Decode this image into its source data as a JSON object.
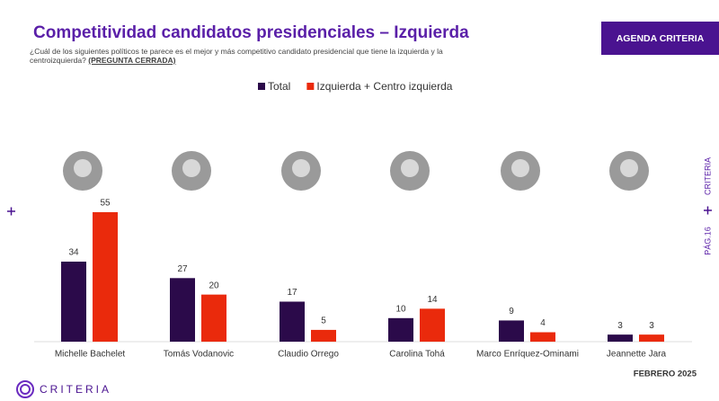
{
  "chart_data": {
    "type": "bar",
    "title": "Competitividad candidatos presidenciales – Izquierda",
    "subtitle": "¿Cuál de los siguientes políticos te parece es el mejor y más competitivo candidato presidencial que tiene la izquierda y la centroizquierda?",
    "note": "(PREGUNTA CERRADA)",
    "categories": [
      "Michelle Bachelet",
      "Tomás Vodanovic",
      "Claudio Orrego",
      "Carolina Tohá",
      "Marco Enríquez-Ominami",
      "Jeannette Jara"
    ],
    "series": [
      {
        "name": "Total",
        "color": "#2b0a4a",
        "values": [
          34,
          27,
          17,
          10,
          9,
          3
        ]
      },
      {
        "name": "Izquierda + Centro izquierda",
        "color": "#ea2a0c",
        "values": [
          55,
          20,
          5,
          14,
          4,
          3
        ]
      }
    ]
  },
  "button": "AGENDA CRITERIA",
  "side_brand": "CRITERIA",
  "page_label": "PÁG.16",
  "date": "FEBRERO 2025",
  "logo": "CRITERIA"
}
